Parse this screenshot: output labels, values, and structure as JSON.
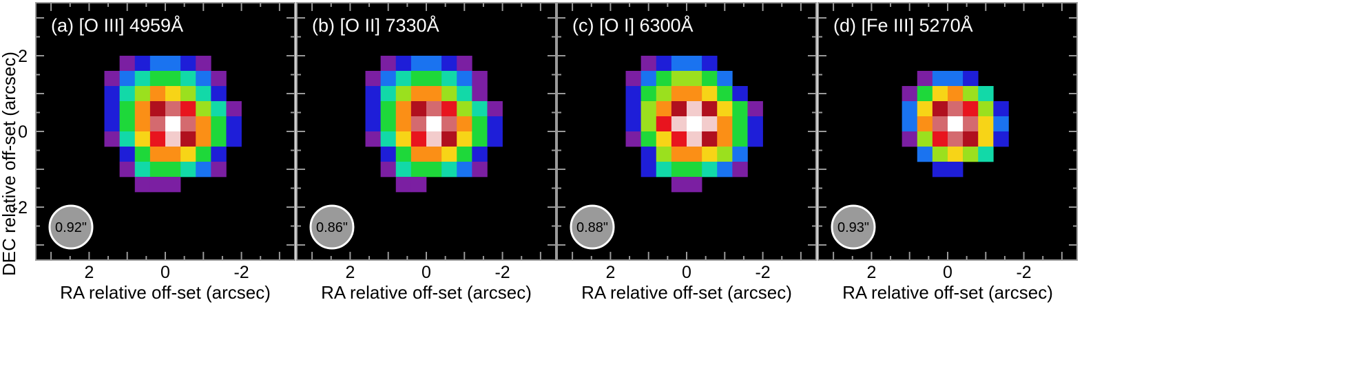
{
  "figure": {
    "ylabel": "DEC relative off-set (arcsec)",
    "xlabel": "RA relative off-set (arcsec)"
  },
  "chart_data": [
    {
      "type": "heatmap",
      "title": "(a) [O III] 4959Å",
      "beam_label": "0.92\"",
      "xlabel": "RA relative off-set (arcsec)",
      "ylabel": "DEC relative off-set (arcsec)",
      "x_ticks": [
        "2",
        "0",
        "-2"
      ],
      "y_ticks": [
        "2",
        "0",
        "-2"
      ],
      "xlim": [
        3.4,
        -3.4
      ],
      "ylim": [
        -3.4,
        3.4
      ],
      "pixel_size_arcsec": 0.4,
      "color_scale": [
        "#000000",
        "#7b1fa2",
        "#1e1ed8",
        "#1a73f0",
        "#12d9a8",
        "#1ed83a",
        "#9be01e",
        "#f7d417",
        "#fb8f16",
        "#e8141e",
        "#b0101e",
        "#d46a6f",
        "#f3cccc",
        "#ffffff"
      ],
      "grid": [
        [
          0,
          0,
          0,
          0,
          0,
          0,
          0,
          0,
          0,
          0,
          0,
          0,
          0,
          0,
          0,
          0
        ],
        [
          0,
          0,
          0,
          0,
          0,
          0,
          0,
          0,
          0,
          0,
          0,
          0,
          0,
          0,
          0,
          0
        ],
        [
          0,
          0,
          0,
          0,
          0,
          0,
          0,
          0,
          0,
          0,
          0,
          0,
          0,
          0,
          0,
          0
        ],
        [
          0,
          0,
          0,
          0,
          0,
          1,
          2,
          3,
          3,
          2,
          1,
          0,
          0,
          0,
          0,
          0
        ],
        [
          0,
          0,
          0,
          0,
          1,
          3,
          4,
          5,
          5,
          4,
          3,
          1,
          0,
          0,
          0,
          0
        ],
        [
          0,
          0,
          0,
          0,
          2,
          4,
          6,
          8,
          7,
          6,
          4,
          2,
          0,
          0,
          0,
          0
        ],
        [
          0,
          0,
          0,
          0,
          2,
          5,
          8,
          10,
          11,
          9,
          6,
          4,
          1,
          0,
          0,
          0
        ],
        [
          0,
          0,
          0,
          0,
          2,
          5,
          8,
          11,
          13,
          11,
          8,
          5,
          2,
          0,
          0,
          0
        ],
        [
          0,
          0,
          0,
          0,
          1,
          4,
          7,
          9,
          12,
          10,
          8,
          5,
          2,
          0,
          0,
          0
        ],
        [
          0,
          0,
          0,
          0,
          0,
          2,
          5,
          8,
          8,
          7,
          5,
          2,
          0,
          0,
          0,
          0
        ],
        [
          0,
          0,
          0,
          0,
          0,
          1,
          4,
          5,
          5,
          4,
          3,
          1,
          0,
          0,
          0,
          0
        ],
        [
          0,
          0,
          0,
          0,
          0,
          0,
          1,
          1,
          1,
          0,
          0,
          0,
          0,
          0,
          0,
          0
        ],
        [
          0,
          0,
          0,
          0,
          0,
          0,
          0,
          0,
          0,
          0,
          0,
          0,
          0,
          0,
          0,
          0
        ],
        [
          0,
          0,
          0,
          0,
          0,
          0,
          0,
          0,
          0,
          0,
          0,
          0,
          0,
          0,
          0,
          0
        ],
        [
          0,
          0,
          0,
          0,
          0,
          0,
          0,
          0,
          0,
          0,
          0,
          0,
          0,
          0,
          0,
          0
        ],
        [
          0,
          0,
          0,
          0,
          0,
          0,
          0,
          0,
          0,
          0,
          0,
          0,
          0,
          0,
          0,
          0
        ]
      ]
    },
    {
      "type": "heatmap",
      "title": "(b) [O II] 7330Å",
      "beam_label": "0.86\"",
      "xlabel": "RA relative off-set (arcsec)",
      "x_ticks": [
        "2",
        "0",
        "-2"
      ],
      "xlim": [
        3.4,
        -3.4
      ],
      "ylim": [
        -3.4,
        3.4
      ],
      "pixel_size_arcsec": 0.4,
      "grid": [
        [
          0,
          0,
          0,
          0,
          0,
          0,
          0,
          0,
          0,
          0,
          0,
          0,
          0,
          0,
          0,
          0
        ],
        [
          0,
          0,
          0,
          0,
          0,
          0,
          0,
          0,
          0,
          0,
          0,
          0,
          0,
          0,
          0,
          0
        ],
        [
          0,
          0,
          0,
          0,
          0,
          0,
          0,
          0,
          0,
          0,
          0,
          0,
          0,
          0,
          0,
          0
        ],
        [
          0,
          0,
          0,
          0,
          0,
          1,
          2,
          3,
          3,
          2,
          1,
          0,
          0,
          0,
          0,
          0
        ],
        [
          0,
          0,
          0,
          0,
          1,
          3,
          4,
          5,
          5,
          4,
          3,
          1,
          0,
          0,
          0,
          0
        ],
        [
          0,
          0,
          0,
          0,
          2,
          4,
          6,
          8,
          8,
          6,
          4,
          1,
          0,
          0,
          0,
          0
        ],
        [
          0,
          0,
          0,
          0,
          2,
          5,
          8,
          10,
          11,
          9,
          6,
          4,
          1,
          0,
          0,
          0
        ],
        [
          0,
          0,
          0,
          0,
          2,
          5,
          8,
          11,
          13,
          11,
          8,
          5,
          2,
          0,
          0,
          0
        ],
        [
          0,
          0,
          0,
          0,
          1,
          4,
          7,
          9,
          12,
          10,
          7,
          5,
          2,
          0,
          0,
          0
        ],
        [
          0,
          0,
          0,
          0,
          0,
          2,
          5,
          8,
          8,
          7,
          5,
          2,
          0,
          0,
          0,
          0
        ],
        [
          0,
          0,
          0,
          0,
          0,
          1,
          4,
          5,
          5,
          4,
          3,
          1,
          0,
          0,
          0,
          0
        ],
        [
          0,
          0,
          0,
          0,
          0,
          0,
          1,
          1,
          0,
          0,
          0,
          0,
          0,
          0,
          0,
          0
        ],
        [
          0,
          0,
          0,
          0,
          0,
          0,
          0,
          0,
          0,
          0,
          0,
          0,
          0,
          0,
          0,
          0
        ],
        [
          0,
          0,
          0,
          0,
          0,
          0,
          0,
          0,
          0,
          0,
          0,
          0,
          0,
          0,
          0,
          0
        ],
        [
          0,
          0,
          0,
          0,
          0,
          0,
          0,
          0,
          0,
          0,
          0,
          0,
          0,
          0,
          0,
          0
        ],
        [
          0,
          0,
          0,
          0,
          0,
          0,
          0,
          0,
          0,
          0,
          0,
          0,
          0,
          0,
          0,
          0
        ]
      ]
    },
    {
      "type": "heatmap",
      "title": "(c) [O I] 6300Å",
      "beam_label": "0.88\"",
      "xlabel": "RA relative off-set (arcsec)",
      "x_ticks": [
        "2",
        "0",
        "-2"
      ],
      "xlim": [
        3.4,
        -3.4
      ],
      "ylim": [
        -3.4,
        3.4
      ],
      "pixel_size_arcsec": 0.4,
      "grid": [
        [
          0,
          0,
          0,
          0,
          0,
          0,
          0,
          0,
          0,
          0,
          0,
          0,
          0,
          0,
          0,
          0
        ],
        [
          0,
          0,
          0,
          0,
          0,
          0,
          0,
          0,
          0,
          0,
          0,
          0,
          0,
          0,
          0,
          0
        ],
        [
          0,
          0,
          0,
          0,
          0,
          0,
          0,
          0,
          0,
          0,
          0,
          0,
          0,
          0,
          0,
          0
        ],
        [
          0,
          0,
          0,
          0,
          0,
          1,
          2,
          3,
          3,
          2,
          0,
          0,
          0,
          0,
          0,
          0
        ],
        [
          0,
          0,
          0,
          0,
          1,
          3,
          5,
          6,
          6,
          5,
          3,
          0,
          0,
          0,
          0,
          0
        ],
        [
          0,
          0,
          0,
          0,
          2,
          5,
          6,
          8,
          8,
          7,
          5,
          2,
          0,
          0,
          0,
          0
        ],
        [
          0,
          0,
          0,
          0,
          2,
          6,
          8,
          10,
          12,
          10,
          7,
          5,
          1,
          0,
          0,
          0
        ],
        [
          0,
          0,
          0,
          0,
          2,
          6,
          9,
          12,
          13,
          12,
          8,
          5,
          2,
          0,
          0,
          0
        ],
        [
          0,
          0,
          0,
          0,
          1,
          5,
          7,
          9,
          12,
          10,
          8,
          5,
          2,
          0,
          0,
          0
        ],
        [
          0,
          0,
          0,
          0,
          0,
          2,
          6,
          8,
          8,
          7,
          6,
          3,
          0,
          0,
          0,
          0
        ],
        [
          0,
          0,
          0,
          0,
          0,
          2,
          4,
          5,
          5,
          4,
          3,
          1,
          0,
          0,
          0,
          0
        ],
        [
          0,
          0,
          0,
          0,
          0,
          0,
          0,
          1,
          1,
          0,
          0,
          0,
          0,
          0,
          0,
          0
        ],
        [
          0,
          0,
          0,
          0,
          0,
          0,
          0,
          0,
          0,
          0,
          0,
          0,
          0,
          0,
          0,
          0
        ],
        [
          0,
          0,
          0,
          0,
          0,
          0,
          0,
          0,
          0,
          0,
          0,
          0,
          0,
          0,
          0,
          0
        ],
        [
          0,
          0,
          0,
          0,
          0,
          0,
          0,
          0,
          0,
          0,
          0,
          0,
          0,
          0,
          0,
          0
        ],
        [
          0,
          0,
          0,
          0,
          0,
          0,
          0,
          0,
          0,
          0,
          0,
          0,
          0,
          0,
          0,
          0
        ]
      ]
    },
    {
      "type": "heatmap",
      "title": "(d) [Fe III] 5270Å",
      "beam_label": "0.93\"",
      "xlabel": "RA relative off-set (arcsec)",
      "x_ticks": [
        "2",
        "0",
        "-2"
      ],
      "xlim": [
        3.4,
        -3.4
      ],
      "ylim": [
        -3.4,
        3.4
      ],
      "pixel_size_arcsec": 0.4,
      "grid": [
        [
          0,
          0,
          0,
          0,
          0,
          0,
          0,
          0,
          0,
          0,
          0,
          0,
          0,
          0,
          0,
          0
        ],
        [
          0,
          0,
          0,
          0,
          0,
          0,
          0,
          0,
          0,
          0,
          0,
          0,
          0,
          0,
          0,
          0
        ],
        [
          0,
          0,
          0,
          0,
          0,
          0,
          0,
          0,
          0,
          0,
          0,
          0,
          0,
          0,
          0,
          0
        ],
        [
          0,
          0,
          0,
          0,
          0,
          0,
          0,
          0,
          0,
          0,
          0,
          0,
          0,
          0,
          0,
          0
        ],
        [
          0,
          0,
          0,
          0,
          0,
          0,
          1,
          3,
          3,
          2,
          0,
          0,
          0,
          0,
          0,
          0
        ],
        [
          0,
          0,
          0,
          0,
          0,
          1,
          5,
          7,
          8,
          6,
          4,
          0,
          0,
          0,
          0,
          0
        ],
        [
          0,
          0,
          0,
          0,
          0,
          3,
          7,
          10,
          11,
          9,
          6,
          2,
          0,
          0,
          0,
          0
        ],
        [
          0,
          0,
          0,
          0,
          0,
          3,
          8,
          11,
          13,
          11,
          7,
          3,
          0,
          0,
          0,
          0
        ],
        [
          0,
          0,
          0,
          0,
          0,
          1,
          6,
          9,
          11,
          10,
          7,
          2,
          0,
          0,
          0,
          0
        ],
        [
          0,
          0,
          0,
          0,
          0,
          0,
          3,
          6,
          7,
          6,
          4,
          0,
          0,
          0,
          0,
          0
        ],
        [
          0,
          0,
          0,
          0,
          0,
          0,
          0,
          2,
          2,
          0,
          0,
          0,
          0,
          0,
          0,
          0
        ],
        [
          0,
          0,
          0,
          0,
          0,
          0,
          0,
          0,
          0,
          0,
          0,
          0,
          0,
          0,
          0,
          0
        ],
        [
          0,
          0,
          0,
          0,
          0,
          0,
          0,
          0,
          0,
          0,
          0,
          0,
          0,
          0,
          0,
          0
        ],
        [
          0,
          0,
          0,
          0,
          0,
          0,
          0,
          0,
          0,
          0,
          0,
          0,
          0,
          0,
          0,
          0
        ],
        [
          0,
          0,
          0,
          0,
          0,
          0,
          0,
          0,
          0,
          0,
          0,
          0,
          0,
          0,
          0,
          0
        ],
        [
          0,
          0,
          0,
          0,
          0,
          0,
          0,
          0,
          0,
          0,
          0,
          0,
          0,
          0,
          0,
          0
        ]
      ]
    }
  ]
}
